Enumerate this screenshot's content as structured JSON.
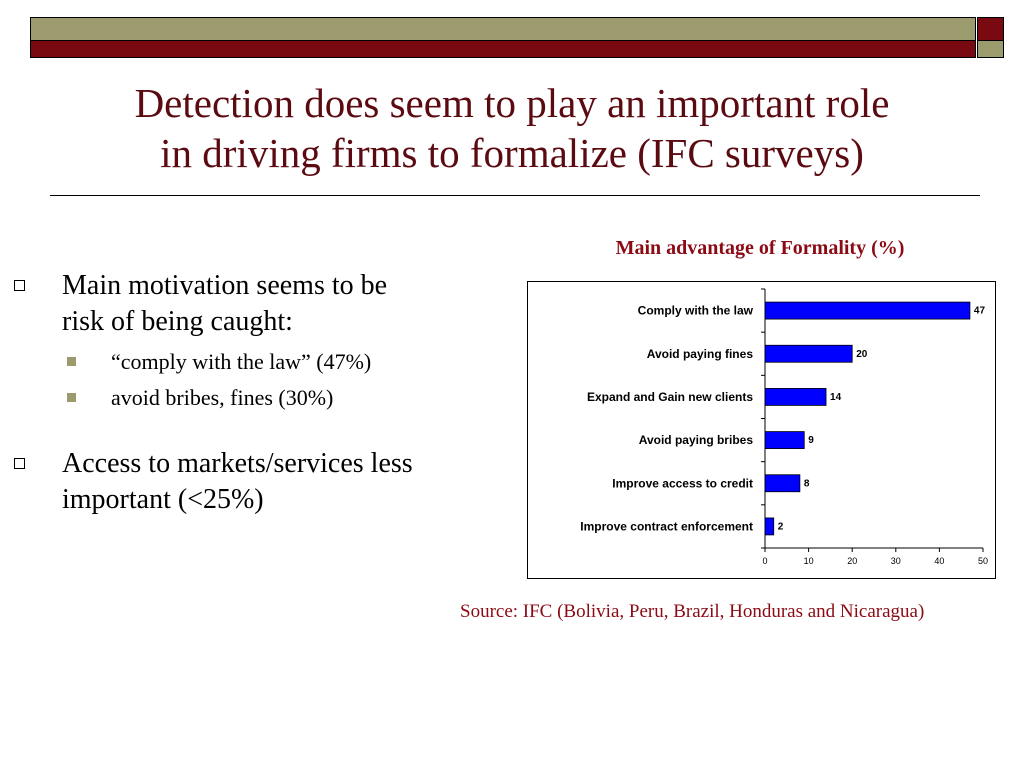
{
  "slide": {
    "title_line1": "Detection does seem to play an important role",
    "title_line2": "in driving firms to formalize (IFC surveys)",
    "bullets": [
      {
        "text_line1": "Main motivation seems to be",
        "text_line2": "risk of being caught:",
        "sub": [
          "“comply with the law” (47%)",
          "avoid bribes, fines (30%)"
        ]
      },
      {
        "text_line1": "Access to markets/services less",
        "text_line2": "important (<25%)"
      }
    ],
    "source": "Source: IFC (Bolivia, Peru, Brazil, Honduras and Nicaragua)"
  },
  "chart_data": {
    "type": "bar",
    "orientation": "horizontal",
    "title": "Main advantage of Formality (%)",
    "categories": [
      "Comply with the law",
      "Avoid paying fines",
      "Expand and Gain new clients",
      "Avoid paying bribes",
      "Improve access to credit",
      "Improve contract enforcement"
    ],
    "values": [
      47,
      20,
      14,
      9,
      8,
      2
    ],
    "xlim": [
      0,
      50
    ],
    "xticks": [
      0,
      10,
      20,
      30,
      40,
      50
    ],
    "bar_color": "#0000ff",
    "grid": false,
    "legend": "none"
  },
  "colors": {
    "title": "#5a0a10",
    "accent": "#8b0a14",
    "olive": "#9c9b6e",
    "maroon": "#7a0a12"
  }
}
